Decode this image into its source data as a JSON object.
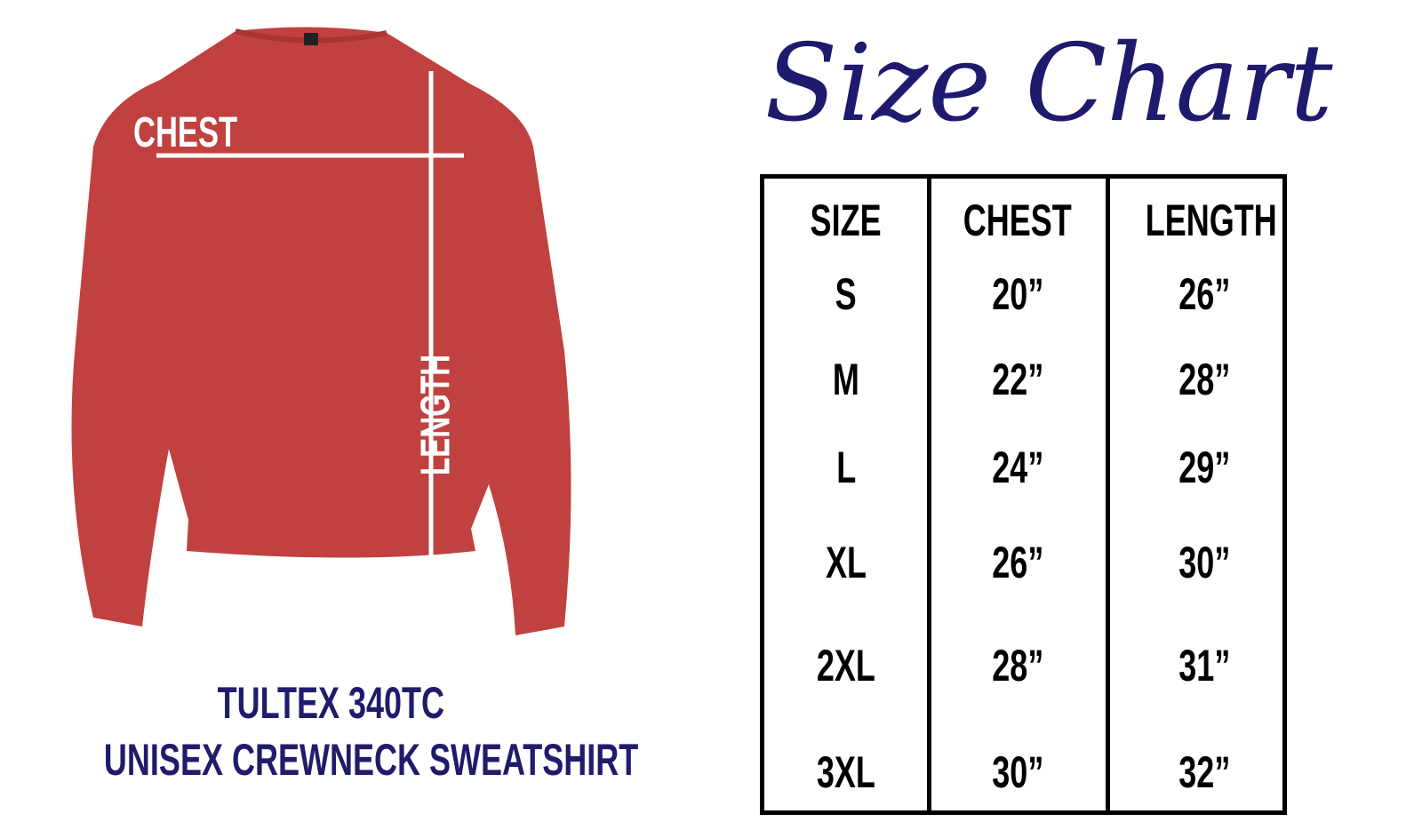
{
  "title": "Size Chart",
  "shirt": {
    "chest_label": "CHEST",
    "length_label": "LENGTH",
    "color": "#c0413f"
  },
  "caption": {
    "line1": "TULTEX 340TC",
    "line2": "UNISEX CREWNECK SWEATSHIRT"
  },
  "table": {
    "headers": [
      "SIZE",
      "CHEST",
      "LENGTH"
    ],
    "rows": [
      [
        "S",
        "20”",
        "26”"
      ],
      [
        "M",
        "22”",
        "28”"
      ],
      [
        "L",
        "24”",
        "29”"
      ],
      [
        "XL",
        "26”",
        "30”"
      ],
      [
        "2XL",
        "28”",
        "31”"
      ],
      [
        "3XL",
        "30”",
        "32”"
      ]
    ]
  },
  "colors": {
    "navy": "#1e1a6e",
    "shirt_red": "#c0413f"
  }
}
